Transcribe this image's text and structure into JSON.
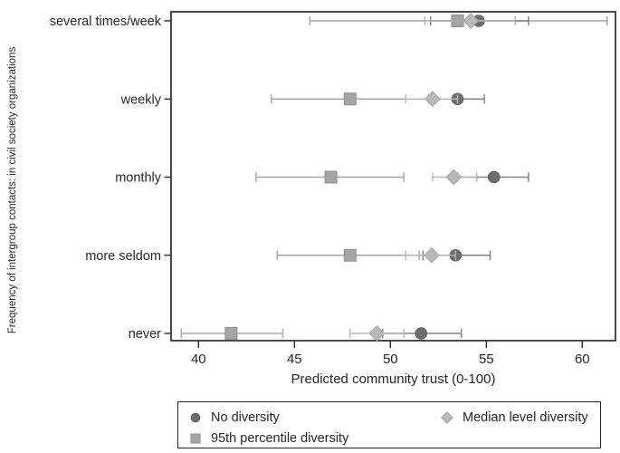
{
  "chart_data": {
    "type": "scatter",
    "title": "",
    "xlabel": "Predicted community trust (0-100)",
    "ylabel": "Frequency of intergroup contacts: in civil society organizations",
    "xlim": [
      38.6,
      61.7
    ],
    "x_ticks": [
      "40",
      "45",
      "50",
      "55",
      "60"
    ],
    "grid": false,
    "legend_position": "bottom",
    "categories": [
      "several times/week",
      "weekly",
      "monthly",
      "more seldom",
      "never"
    ],
    "series": [
      {
        "name": "95th percentile diversity",
        "marker": "square",
        "color": "#a5a5a5",
        "edge": "#8f8f8f",
        "line_color": "#a5a5a5",
        "values": [
          53.5,
          47.9,
          46.9,
          47.9,
          41.7
        ],
        "ci_low": [
          45.8,
          43.8,
          43.0,
          44.1,
          39.1
        ],
        "ci_high": [
          61.3,
          52.0,
          50.7,
          51.5,
          44.4
        ]
      },
      {
        "name": "No diversity",
        "marker": "circle",
        "color": "#6d6d6d",
        "edge": "#5e5e5e",
        "line_color": "#818181",
        "values": [
          54.6,
          53.5,
          55.4,
          53.4,
          51.6
        ],
        "ci_low": [
          52.1,
          52.2,
          53.5,
          51.7,
          49.6
        ],
        "ci_high": [
          57.2,
          54.9,
          57.2,
          55.2,
          53.7
        ]
      },
      {
        "name": "Median level diversity",
        "marker": "diamond",
        "color": "#b9b9b9",
        "edge": "#a7a7a7",
        "line_color": "#b5b5b5",
        "values": [
          54.2,
          52.2,
          53.3,
          52.15,
          49.3
        ],
        "ci_low": [
          51.8,
          50.8,
          52.2,
          50.8,
          47.9
        ],
        "ci_high": [
          56.5,
          53.5,
          54.5,
          53.4,
          50.7
        ]
      }
    ],
    "legend": [
      {
        "label": "No diversity",
        "marker": "circle"
      },
      {
        "label": "95th percentile diversity",
        "marker": "square"
      },
      {
        "label": "Median level diversity",
        "marker": "diamond"
      }
    ]
  },
  "colors": {
    "axis": "#2b2b2b",
    "text": "#262626",
    "background": "#ffffff"
  }
}
